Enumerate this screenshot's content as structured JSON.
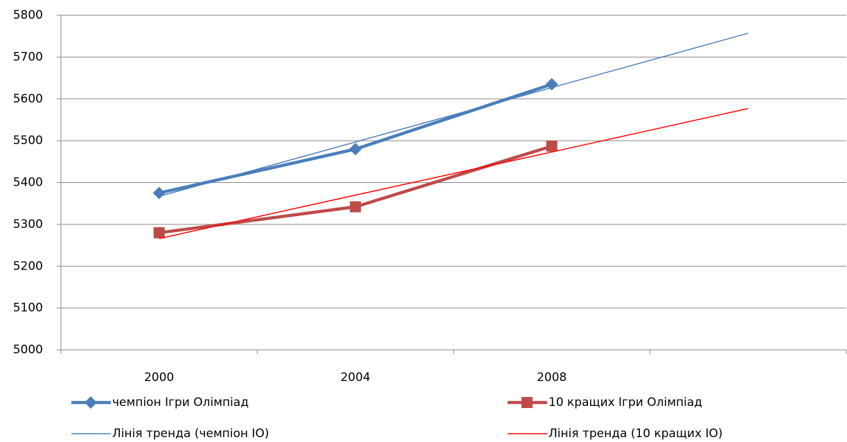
{
  "chart_data": {
    "type": "line",
    "categories": [
      "2000",
      "2004",
      "2008",
      null
    ],
    "series": [
      {
        "name": "чемпіон Ігри Олімпіад",
        "color": "#4a7ebb",
        "marker": "diamond",
        "values": [
          5375,
          5480,
          5635,
          null
        ]
      },
      {
        "name": "10 кращих Ігри Олімпіад",
        "color": "#be4b48",
        "marker": "square",
        "values": [
          5280,
          5342,
          5487,
          null
        ]
      },
      {
        "name": "Лінія тренда (чемпіон ІО)",
        "color": "#4a7ebb",
        "marker": null,
        "values": [
          5367,
          5497,
          5627,
          5757
        ]
      },
      {
        "name": "Лінія тренда (10 кращих ІО)",
        "color": "#ff0000",
        "marker": null,
        "values": [
          5266,
          5370,
          5473,
          5577
        ]
      }
    ],
    "ylim": [
      5000,
      5800
    ],
    "yticks": [
      5000,
      5100,
      5200,
      5300,
      5400,
      5500,
      5600,
      5700,
      5800
    ],
    "grid": true,
    "legend": "bottom"
  }
}
